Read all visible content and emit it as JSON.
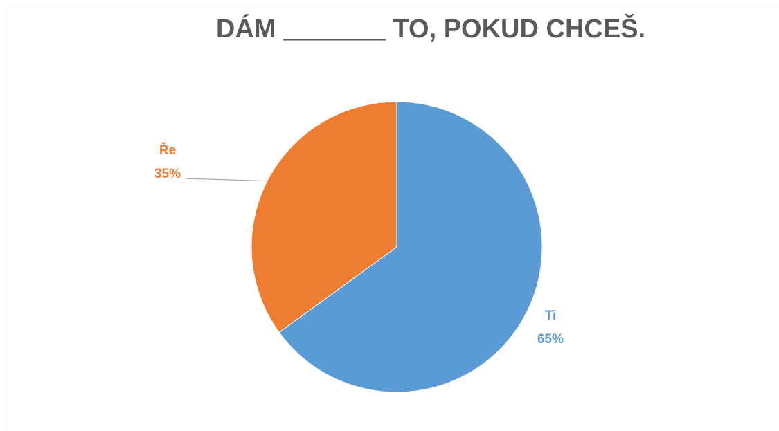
{
  "chart_data": {
    "type": "pie",
    "title": "DÁM _______ TO, POKUD CHCEŠ.",
    "categories": [
      "Ti",
      "Ře"
    ],
    "values": [
      65,
      35
    ],
    "value_labels": [
      "65%",
      "35%"
    ],
    "colors": [
      "#5b9bd5",
      "#ed7d31"
    ]
  }
}
